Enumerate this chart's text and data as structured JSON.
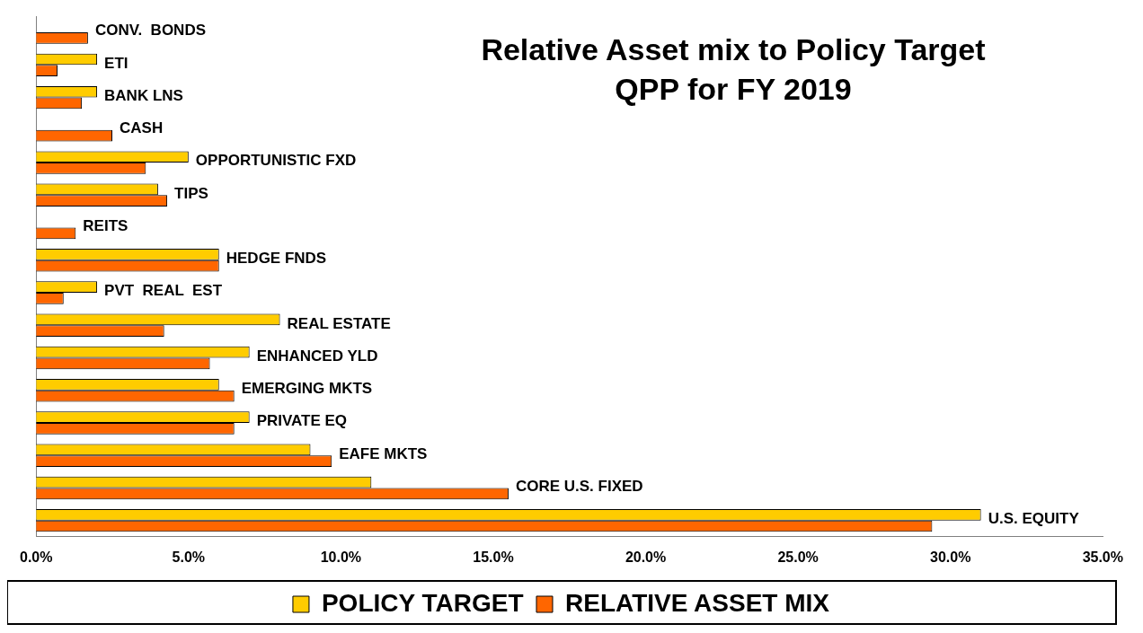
{
  "chart_data": {
    "type": "bar",
    "orientation": "horizontal",
    "title": "Relative Asset mix to Policy Target\nQPP for FY 2019",
    "categories": [
      "CONV.  BONDS",
      "ETI",
      "BANK LNS",
      "CASH",
      "OPPORTUNISTIC FXD",
      "TIPS",
      "REITS",
      "HEDGE FNDS",
      "PVT  REAL  EST",
      "REAL ESTATE",
      "ENHANCED YLD",
      "EMERGING MKTS",
      "PRIVATE EQ",
      "EAFE MKTS",
      "CORE U.S. FIXED",
      "U.S. EQUITY"
    ],
    "series": [
      {
        "name": "POLICY TARGET",
        "color": "#ffcc00",
        "values": [
          0,
          2.0,
          2.0,
          0,
          5.0,
          4.0,
          0,
          6.0,
          2.0,
          8.0,
          7.0,
          6.0,
          7.0,
          9.0,
          11.0,
          31.0
        ]
      },
      {
        "name": "RELATIVE ASSET MIX",
        "color": "#ff6600",
        "values": [
          1.7,
          0.7,
          1.5,
          2.5,
          3.6,
          4.3,
          1.3,
          6.0,
          0.9,
          4.2,
          5.7,
          6.5,
          6.5,
          9.7,
          15.5,
          29.4
        ]
      }
    ],
    "xlim": [
      0,
      35
    ],
    "xticks": [
      {
        "value": 0,
        "label": "0.0%"
      },
      {
        "value": 5,
        "label": "5.0%"
      },
      {
        "value": 10,
        "label": "10.0%"
      },
      {
        "value": 15,
        "label": "15.0%"
      },
      {
        "value": 20,
        "label": "20.0%"
      },
      {
        "value": 25,
        "label": "25.0%"
      },
      {
        "value": 30,
        "label": "30.0%"
      },
      {
        "value": 35,
        "label": "35.0%"
      }
    ],
    "tick_labels": "x",
    "grid": false,
    "legend": "bottom"
  }
}
